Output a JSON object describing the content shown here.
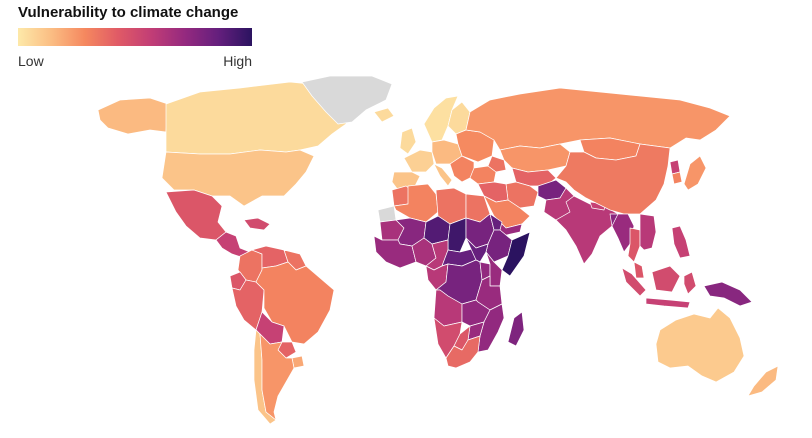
{
  "legend": {
    "title": "Vulnerability to climate change",
    "low_label": "Low",
    "high_label": "High",
    "stops": [
      "#fde9a9",
      "#fbbd83",
      "#f5885f",
      "#e05a66",
      "#c13d76",
      "#94297f",
      "#641f7d",
      "#2b1360"
    ]
  },
  "colors": {
    "no_data": "#d9d9d9",
    "border": "#ffffff"
  },
  "regions": [
    {
      "name": "Canada",
      "level": 0.05
    },
    {
      "name": "Alaska",
      "level": 0.15
    },
    {
      "name": "United States",
      "level": 0.12
    },
    {
      "name": "Greenland",
      "level": null
    },
    {
      "name": "Mexico",
      "level": 0.45
    },
    {
      "name": "Central America",
      "level": 0.55
    },
    {
      "name": "Caribbean",
      "level": 0.5
    },
    {
      "name": "Colombia",
      "level": 0.35
    },
    {
      "name": "Venezuela",
      "level": 0.4
    },
    {
      "name": "Guianas",
      "level": 0.35
    },
    {
      "name": "Ecuador",
      "level": 0.45
    },
    {
      "name": "Peru",
      "level": 0.4
    },
    {
      "name": "Brazil",
      "level": 0.3
    },
    {
      "name": "Bolivia",
      "level": 0.55
    },
    {
      "name": "Paraguay",
      "level": 0.4
    },
    {
      "name": "Chile",
      "level": 0.12
    },
    {
      "name": "Argentina",
      "level": 0.25
    },
    {
      "name": "Uruguay",
      "level": 0.2
    },
    {
      "name": "Iceland",
      "level": 0.05
    },
    {
      "name": "Scandinavia",
      "level": 0.03
    },
    {
      "name": "Finland",
      "level": 0.05
    },
    {
      "name": "United Kingdom",
      "level": 0.05
    },
    {
      "name": "Western Europe",
      "level": 0.08
    },
    {
      "name": "Iberia",
      "level": 0.12
    },
    {
      "name": "Central Europe",
      "level": 0.15
    },
    {
      "name": "Italy",
      "level": 0.12
    },
    {
      "name": "Balkans",
      "level": 0.3
    },
    {
      "name": "Eastern Europe",
      "level": 0.28
    },
    {
      "name": "Russia",
      "level": 0.25
    },
    {
      "name": "Turkey",
      "level": 0.3
    },
    {
      "name": "Caucasus",
      "level": 0.35
    },
    {
      "name": "Kazakhstan",
      "level": 0.25
    },
    {
      "name": "Central Asia",
      "level": 0.4
    },
    {
      "name": "Mongolia",
      "level": 0.3
    },
    {
      "name": "China",
      "level": 0.33
    },
    {
      "name": "North Korea",
      "level": 0.55
    },
    {
      "name": "South Korea",
      "level": 0.3
    },
    {
      "name": "Japan",
      "level": 0.25
    },
    {
      "name": "Iran",
      "level": 0.35
    },
    {
      "name": "Iraq and Syria",
      "level": 0.4
    },
    {
      "name": "Arabian Peninsula",
      "level": 0.3
    },
    {
      "name": "Yemen",
      "level": 0.7
    },
    {
      "name": "Afghanistan",
      "level": 0.8
    },
    {
      "name": "Pakistan",
      "level": 0.6
    },
    {
      "name": "India",
      "level": 0.6
    },
    {
      "name": "Nepal",
      "level": 0.55
    },
    {
      "name": "Bangladesh",
      "level": 0.75
    },
    {
      "name": "Myanmar",
      "level": 0.7
    },
    {
      "name": "Thailand",
      "level": 0.45
    },
    {
      "name": "Indochina",
      "level": 0.6
    },
    {
      "name": "Malaysia",
      "level": 0.45
    },
    {
      "name": "Sumatra",
      "level": 0.5
    },
    {
      "name": "Java",
      "level": 0.55
    },
    {
      "name": "Borneo",
      "level": 0.5
    },
    {
      "name": "Sulawesi",
      "level": 0.5
    },
    {
      "name": "Philippines",
      "level": 0.55
    },
    {
      "name": "Papua New Guinea",
      "level": 0.75
    },
    {
      "name": "Australia",
      "level": 0.1
    },
    {
      "name": "New Zealand",
      "level": 0.15
    },
    {
      "name": "Morocco",
      "level": 0.35
    },
    {
      "name": "Western Sahara",
      "level": null
    },
    {
      "name": "Algeria",
      "level": 0.3
    },
    {
      "name": "Libya",
      "level": 0.35
    },
    {
      "name": "Egypt",
      "level": 0.35
    },
    {
      "name": "Mauritania",
      "level": 0.65
    },
    {
      "name": "Mali",
      "level": 0.75
    },
    {
      "name": "Niger",
      "level": 0.9
    },
    {
      "name": "Chad",
      "level": 0.95
    },
    {
      "name": "Sudan",
      "level": 0.8
    },
    {
      "name": "South Sudan",
      "level": 0.85
    },
    {
      "name": "Eritrea",
      "level": 0.85
    },
    {
      "name": "Ethiopia",
      "level": 0.8
    },
    {
      "name": "Somalia",
      "level": 1.0
    },
    {
      "name": "West Africa",
      "level": 0.7
    },
    {
      "name": "Nigeria",
      "level": 0.65
    },
    {
      "name": "Cameroon",
      "level": 0.6
    },
    {
      "name": "Central African Republic",
      "level": 0.85
    },
    {
      "name": "Kenya",
      "level": 0.7
    },
    {
      "name": "Uganda",
      "level": 0.72
    },
    {
      "name": "DR Congo",
      "level": 0.8
    },
    {
      "name": "Gabon and Congo",
      "level": 0.6
    },
    {
      "name": "Tanzania",
      "level": 0.7
    },
    {
      "name": "Angola",
      "level": 0.6
    },
    {
      "name": "Zambia",
      "level": 0.72
    },
    {
      "name": "Mozambique",
      "level": 0.72
    },
    {
      "name": "Zimbabwe",
      "level": 0.7
    },
    {
      "name": "Namibia",
      "level": 0.5
    },
    {
      "name": "Botswana",
      "level": 0.45
    },
    {
      "name": "South Africa",
      "level": 0.38
    },
    {
      "name": "Madagascar",
      "level": 0.78
    }
  ]
}
